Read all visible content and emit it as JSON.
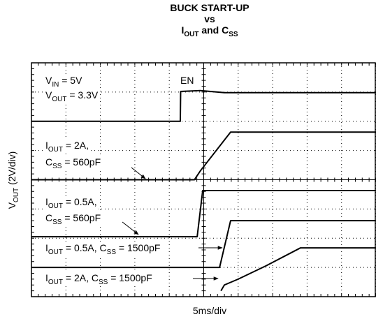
{
  "chart_data": {
    "type": "line",
    "title": [
      [
        "BUCK START-UP"
      ],
      [
        "vs"
      ],
      [
        "I",
        "OUT",
        " and C",
        "SS"
      ]
    ],
    "y_label": [
      "V",
      "OUT",
      " (2V/div)"
    ],
    "x_label": "5ms/div",
    "xlim": [
      0,
      10
    ],
    "ylim": [
      0,
      8
    ],
    "xticks": [
      0,
      1,
      2,
      3,
      4,
      5,
      6,
      7,
      8,
      9,
      10
    ],
    "yticks": [
      0,
      1,
      2,
      3,
      4,
      5,
      6,
      7,
      8
    ],
    "grid": true,
    "series": [
      {
        "color": "#000000",
        "x": [
          0,
          4.32,
          4.33,
          4.9,
          5.6,
          10
        ],
        "values": [
          6.0,
          6.0,
          7.02,
          7.05,
          6.98,
          6.98
        ]
      },
      {
        "color": "#000000",
        "x": [
          0,
          4.73,
          4.9,
          5.78,
          10
        ],
        "values": [
          4.0,
          4.0,
          4.3,
          5.63,
          5.63
        ]
      },
      {
        "color": "#000000",
        "x": [
          0,
          4.81,
          4.97,
          10
        ],
        "values": [
          2.05,
          2.05,
          3.63,
          3.63
        ]
      },
      {
        "color": "#000000",
        "x": [
          0,
          5.46,
          5.78,
          10
        ],
        "values": [
          1.0,
          1.0,
          2.6,
          2.6
        ]
      },
      {
        "color": "#000000",
        "x": [
          5.5,
          5.6,
          6.0,
          6.8,
          7.81,
          10
        ],
        "values": [
          0.2,
          0.4,
          0.6,
          1.05,
          1.67,
          1.67
        ]
      }
    ],
    "annotations": [
      [
        "V",
        "IN",
        " = 5V"
      ],
      [
        "V",
        "OUT",
        " = 3.3V"
      ],
      [
        "EN"
      ],
      [
        "I",
        "OUT",
        " = 2A,"
      ],
      [
        "C",
        "SS",
        " = 560pF"
      ],
      [
        "I",
        "OUT",
        " = 0.5A,"
      ],
      [
        "C",
        "SS",
        " = 560pF"
      ],
      [
        "I",
        "OUT",
        " = 0.5A, C",
        "SS",
        " = 1500pF"
      ],
      [
        "I",
        "OUT",
        " = 2A, C",
        "SS",
        " = 1500pF"
      ]
    ]
  }
}
